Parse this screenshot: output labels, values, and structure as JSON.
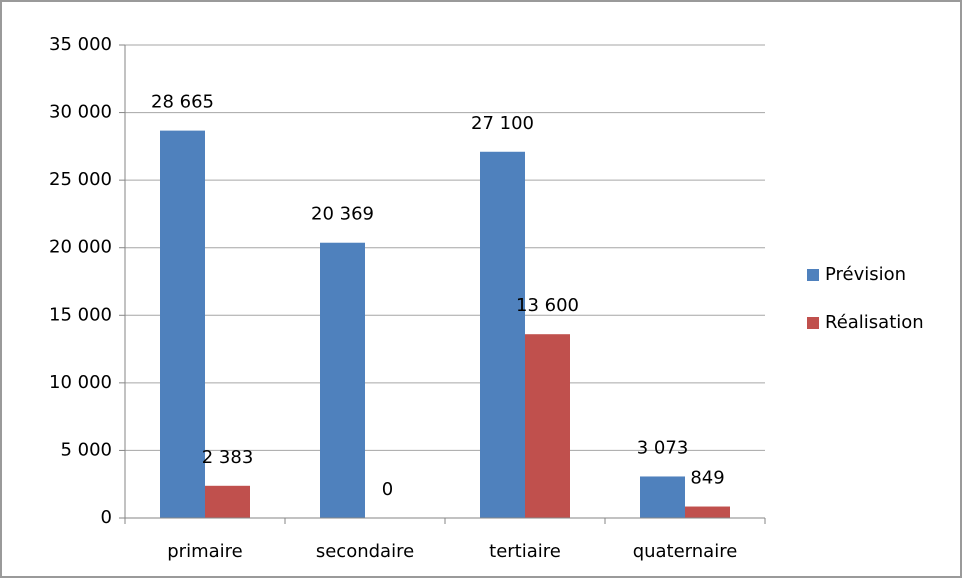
{
  "chart_data": {
    "type": "bar",
    "categories": [
      "primaire",
      "secondaire",
      "tertiaire",
      "quaternaire"
    ],
    "series": [
      {
        "name": "Prévision",
        "color": "#4f81bd",
        "values": [
          28665,
          20369,
          27100,
          3073
        ],
        "value_labels": [
          "28 665",
          "20 369",
          "27 100",
          "3 073"
        ]
      },
      {
        "name": "Réalisation",
        "color": "#c0504d",
        "values": [
          2383,
          0,
          13600,
          849
        ],
        "value_labels": [
          "2 383",
          "0",
          "13 600",
          "849"
        ]
      }
    ],
    "ylim": [
      0,
      35000
    ],
    "yticks": [
      0,
      {
        "value": 5000,
        "label": "5 000"
      },
      {
        "value": 10000,
        "label": "10 000"
      },
      {
        "value": 15000,
        "label": "15 000"
      },
      {
        "value": 20000,
        "label": "20 000"
      },
      {
        "value": 25000,
        "label": "25 000"
      },
      {
        "value": 30000,
        "label": "30 000"
      },
      {
        "value": 35000,
        "label": "35 000"
      }
    ],
    "grid": true,
    "legend": "right"
  }
}
